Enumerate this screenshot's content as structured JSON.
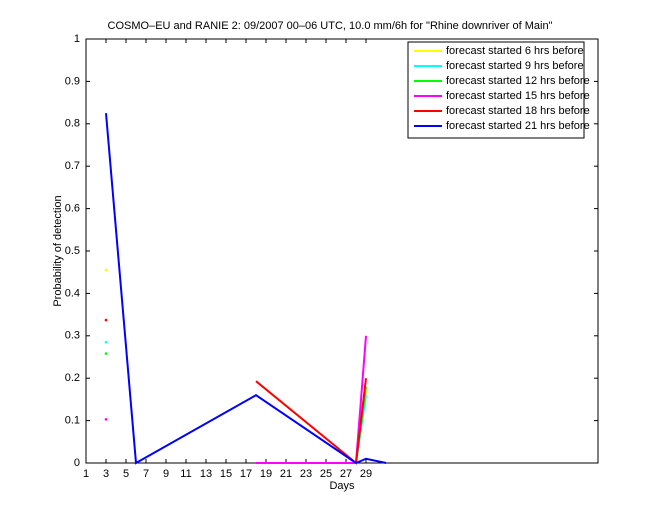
{
  "chart_data": {
    "type": "line",
    "title": "COSMO–EU and RANIE 2: 09/2007 00–06 UTC, 10.0 mm/6h for \"Rhine downriver of Main\"",
    "x_label": "Days",
    "y_label": "Probability of detection",
    "x": [
      3,
      6,
      18,
      28,
      29,
      31
    ],
    "series": [
      {
        "name": "forecast started 6 hrs before",
        "color": "#ffff00",
        "values": [
          0.455,
          null,
          null,
          0,
          0.17,
          null
        ]
      },
      {
        "name": "forecast started 9 hrs before",
        "color": "#00ffff",
        "values": [
          0.285,
          null,
          null,
          0,
          0.16,
          null
        ]
      },
      {
        "name": "forecast started 12 hrs before",
        "color": "#00ff00",
        "values": [
          0.258,
          null,
          null,
          0,
          0.18,
          null
        ]
      },
      {
        "name": "forecast started 15 hrs before",
        "color": "#ff00ff",
        "values": [
          0.103,
          null,
          0,
          0,
          0.3,
          null
        ]
      },
      {
        "name": "forecast started 18 hrs before",
        "color": "#ff0000",
        "values": [
          0.337,
          null,
          0.193,
          0,
          0.2,
          null
        ]
      },
      {
        "name": "forecast started 21 hrs before",
        "color": "#0000ff",
        "values": [
          0.825,
          0,
          0.16,
          0,
          0.01,
          0
        ]
      }
    ],
    "xlim": [
      1,
      52.2
    ],
    "xticks": [
      1,
      3,
      5,
      7,
      9,
      11,
      13,
      15,
      17,
      19,
      21,
      23,
      25,
      27,
      29
    ],
    "ylim": [
      0,
      1
    ],
    "yticks": [
      0,
      0.1,
      0.2,
      0.3,
      0.4,
      0.5,
      0.6,
      0.7,
      0.8,
      0.9,
      1
    ],
    "legend": "northeast"
  }
}
